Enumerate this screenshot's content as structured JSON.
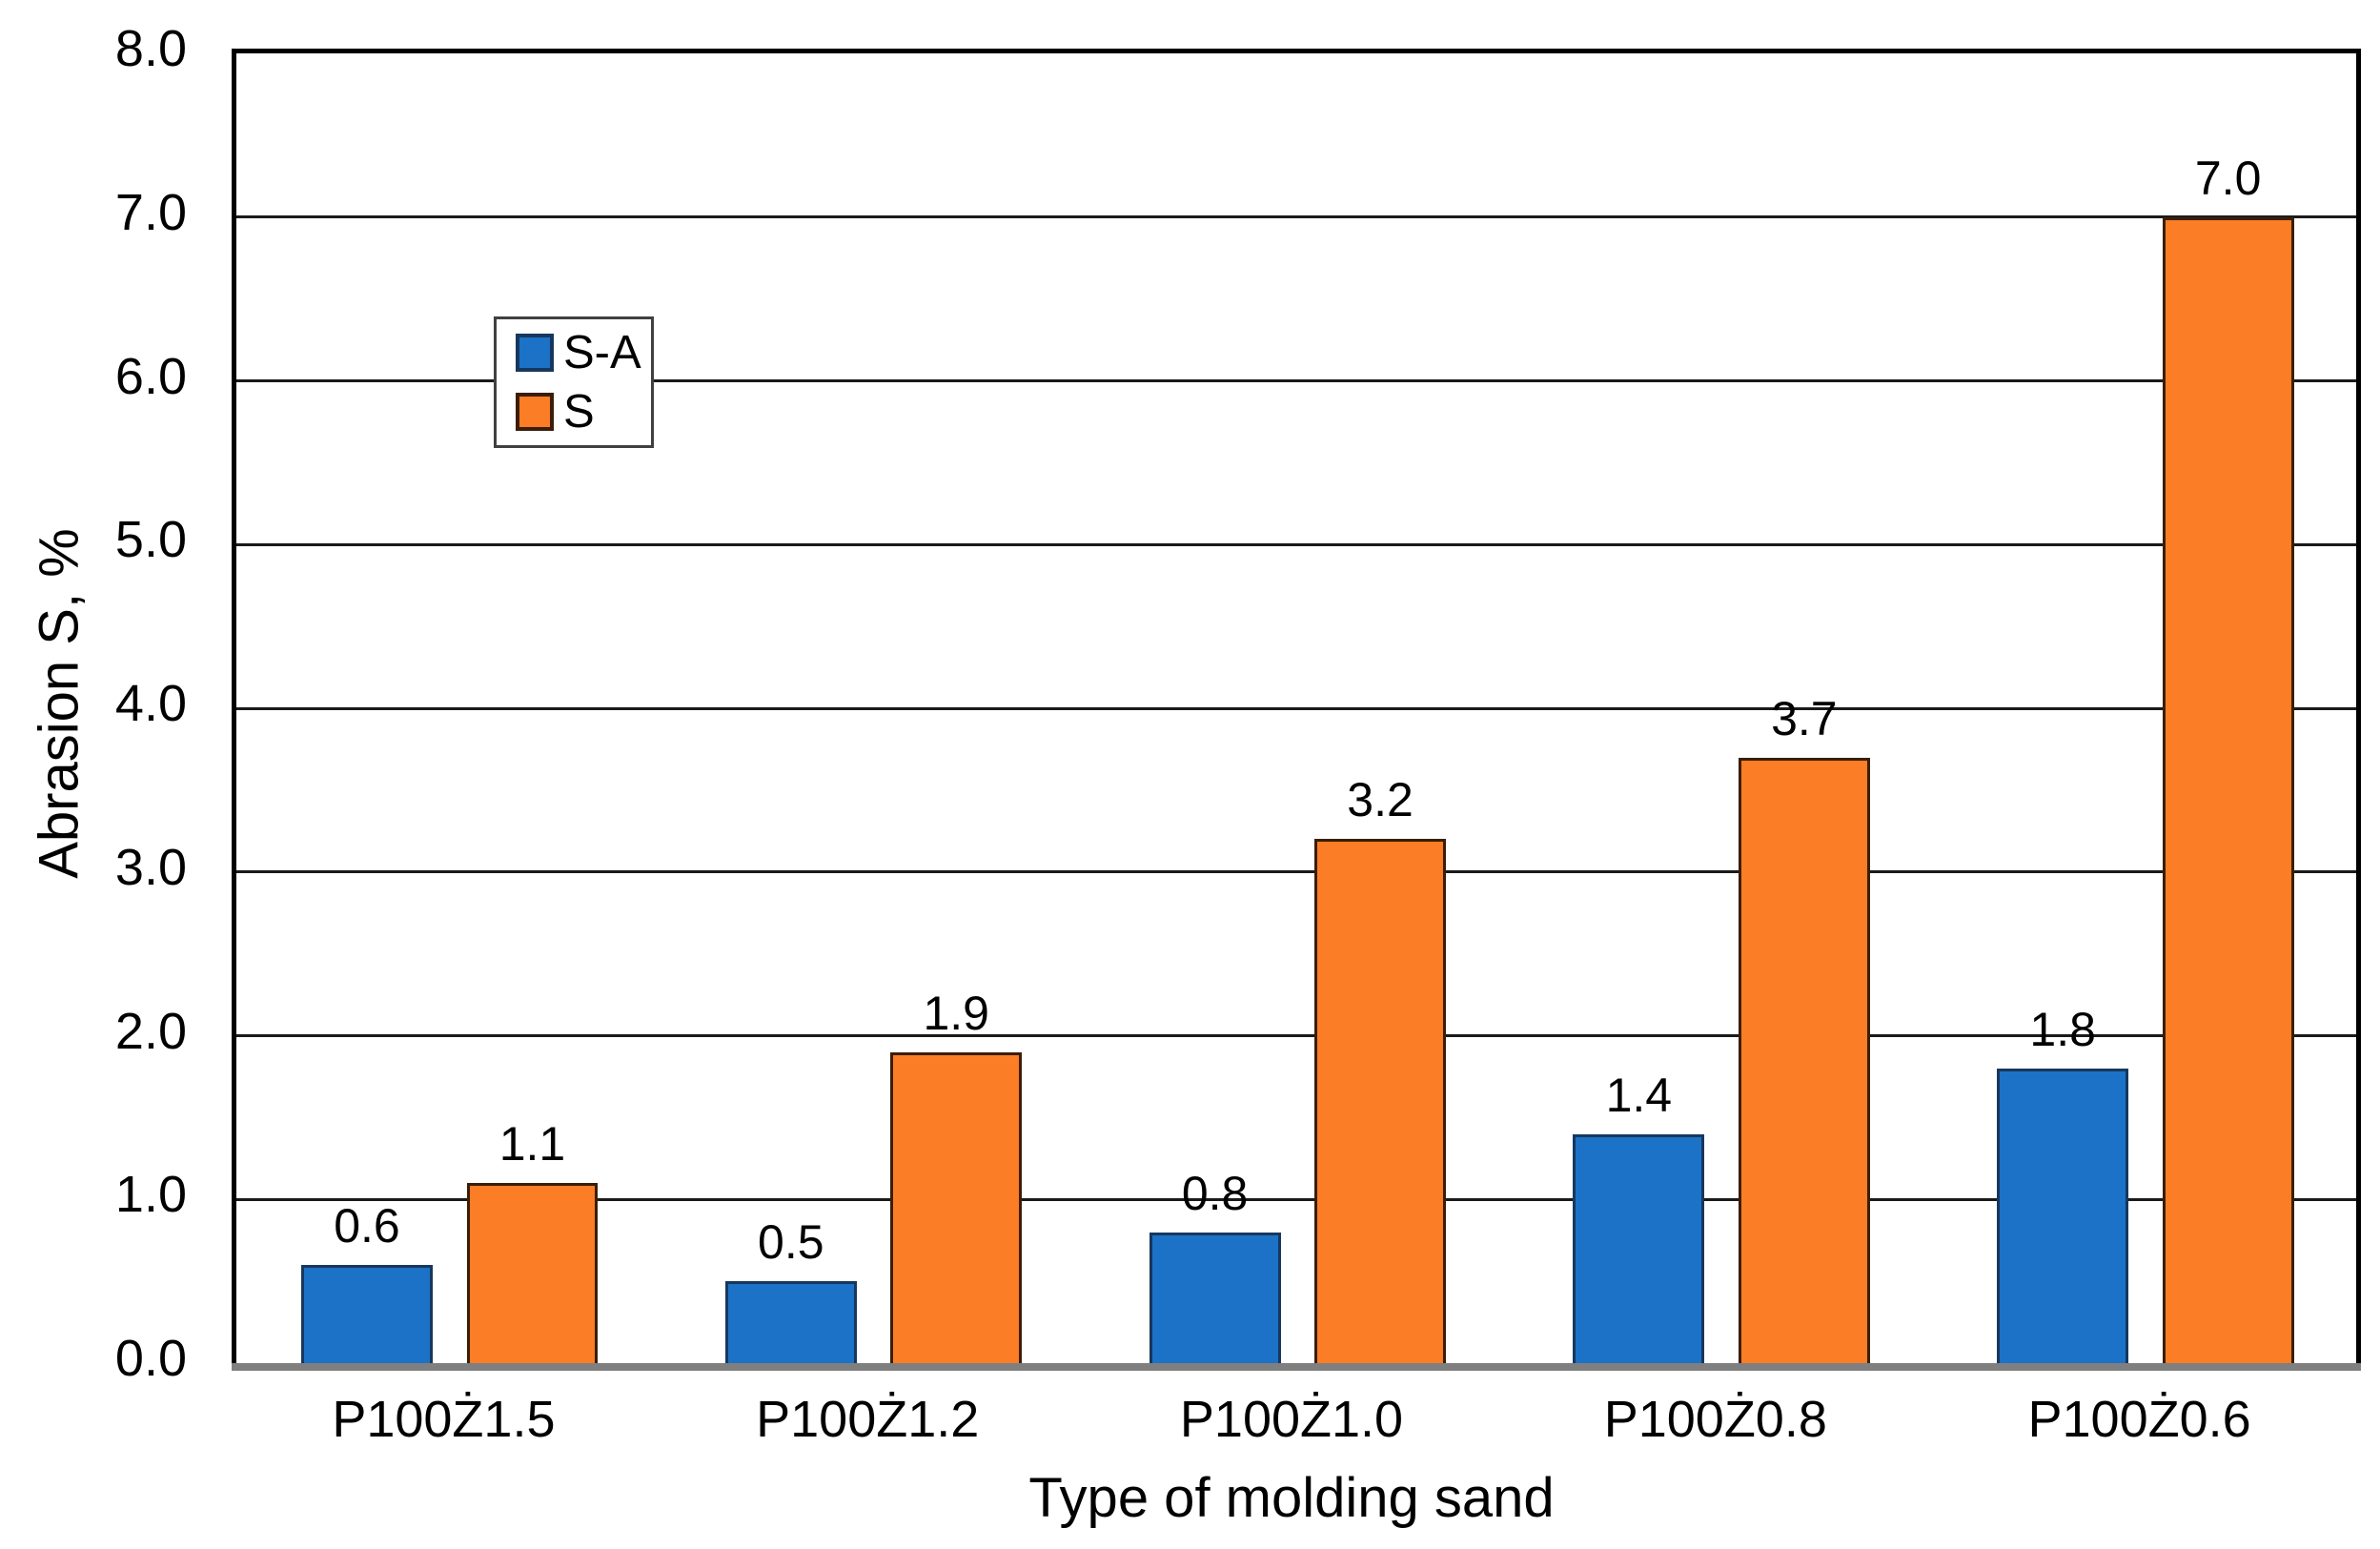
{
  "chart_data": {
    "type": "bar",
    "categories": [
      "P100Ż1.5",
      "P100Ż1.2",
      "P100Ż1.0",
      "P100Ż0.8",
      "P100Ż0.6"
    ],
    "series": [
      {
        "name": "S-A",
        "values": [
          0.6,
          0.5,
          0.8,
          1.4,
          1.8
        ],
        "fill": "#1B72C6",
        "border": "#17375E"
      },
      {
        "name": "S",
        "values": [
          1.1,
          1.9,
          3.2,
          3.7,
          7.0
        ],
        "fill": "#FB7D26",
        "border": "#3A1E07"
      }
    ],
    "value_labels": [
      [
        "0.6",
        "0.5",
        "0.8",
        "1.4",
        "1.8"
      ],
      [
        "1.1",
        "1.9",
        "3.2",
        "3.7",
        "7.0"
      ]
    ],
    "title": "",
    "xlabel": "Type of molding sand",
    "ylabel": "Abrasion S, %",
    "ylim": [
      0,
      8
    ],
    "yticks": [
      {
        "value": 0,
        "label": "0.0"
      },
      {
        "value": 1,
        "label": "1.0"
      },
      {
        "value": 2,
        "label": "2.0"
      },
      {
        "value": 3,
        "label": "3.0"
      },
      {
        "value": 4,
        "label": "4.0"
      },
      {
        "value": 5,
        "label": "5.0"
      },
      {
        "value": 6,
        "label": "6.0"
      },
      {
        "value": 7,
        "label": "7.0"
      },
      {
        "value": 8,
        "label": "8.0"
      }
    ],
    "grid": "horizontal",
    "legend_position": "inside-upper-left",
    "colors": {
      "background": "#FFFFFF",
      "grid": "#1A1A1A",
      "plot_border": "#000000",
      "x_axis_line": "#7F7F7F",
      "text": "#000000"
    }
  }
}
